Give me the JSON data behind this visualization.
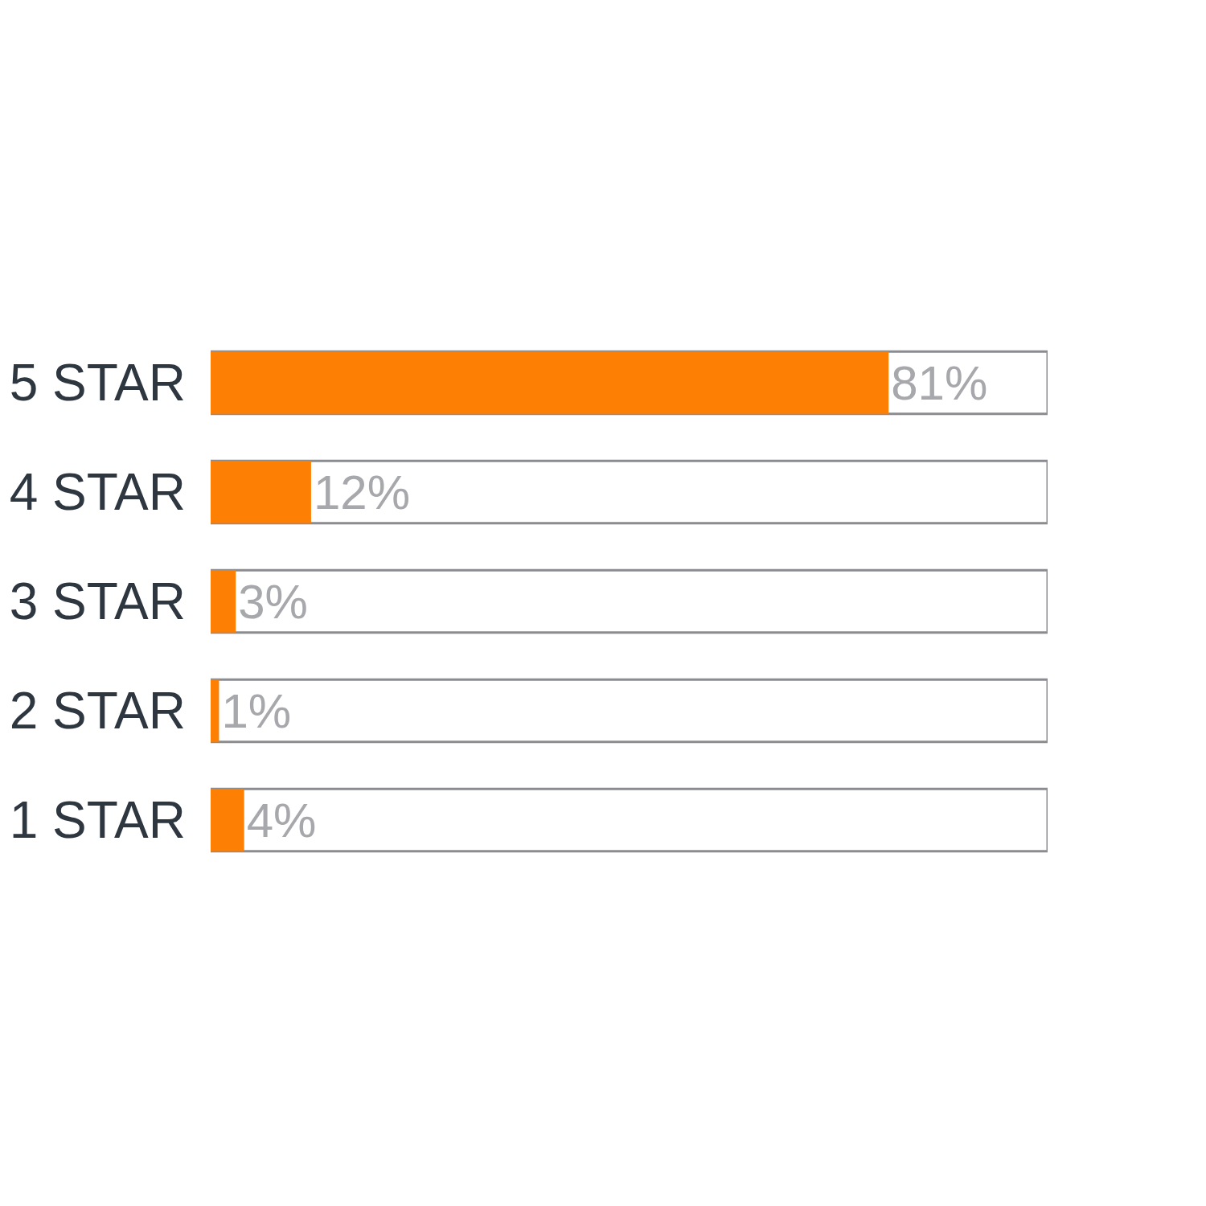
{
  "chart_data": {
    "type": "bar",
    "orientation": "horizontal",
    "categories": [
      "5 STAR",
      "4 STAR",
      "3 STAR",
      "2 STAR",
      "1 STAR"
    ],
    "values": [
      81,
      12,
      3,
      1,
      4
    ],
    "value_labels": [
      "81%",
      "12%",
      "3%",
      "1%",
      "4%"
    ],
    "color": "#fd7f04",
    "xlim": [
      0,
      100
    ],
    "tick_labels": "y",
    "grid": false,
    "legend": false
  }
}
